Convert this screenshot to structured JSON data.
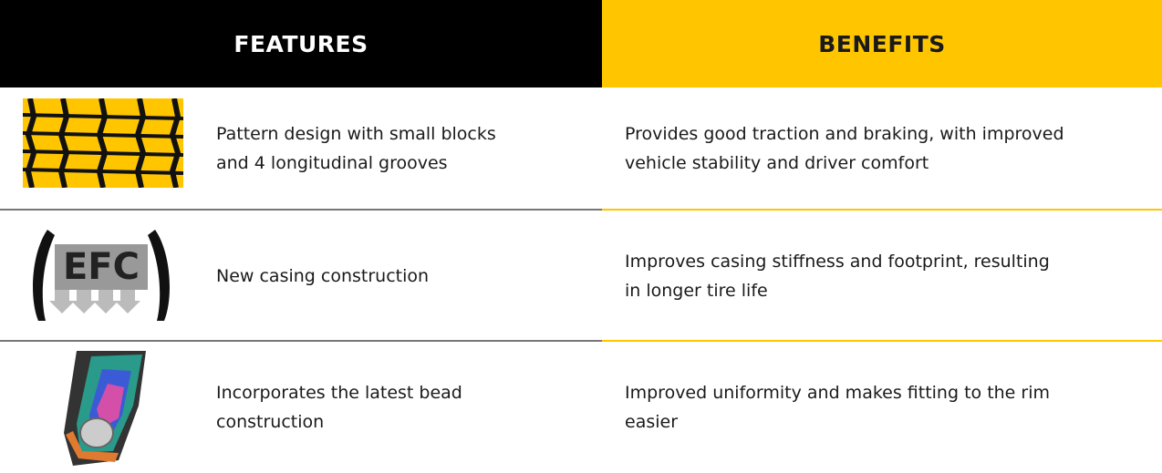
{
  "header": {
    "features": "FEATURES",
    "benefits": "BENEFITS"
  },
  "rows": [
    {
      "feature": [
        "Pattern design with small blocks",
        "and 4 longitudinal grooves"
      ],
      "benefit": [
        "Provides good traction and braking, with improved",
        "vehicle stability and driver comfort"
      ]
    },
    {
      "icon_label": "EFC",
      "feature": [
        "New casing construction"
      ],
      "benefit": [
        "Improves casing stiffness and footprint, resulting",
        "in longer tire life"
      ]
    },
    {
      "feature": [
        "Incorporates the latest bead",
        "construction"
      ],
      "benefit": [
        "Improved uniformity and makes fitting to the rim",
        "easier"
      ]
    }
  ]
}
